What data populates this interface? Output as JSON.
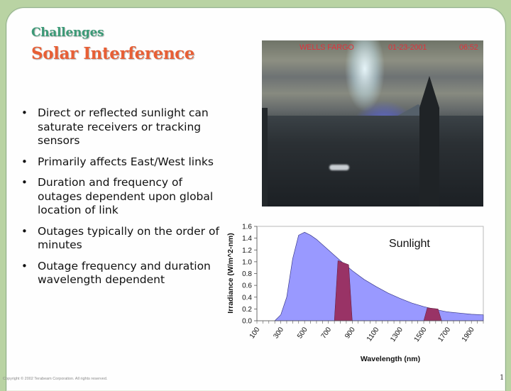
{
  "slide": {
    "title": "Challenges",
    "subtitle": "Solar Interference",
    "colors": {
      "background": "#b9d3a3",
      "title": "#3c9a77",
      "subtitle": "#e85f35",
      "curve_fill": "#9999ff",
      "band_fill": "#993366"
    }
  },
  "bullets": [
    {
      "symbol": "•",
      "text": "Direct or reflected sunlight can saturate receivers or tracking sensors"
    },
    {
      "symbol": "•",
      "text": "Primarily affects East/West links"
    },
    {
      "symbol": "•",
      "text": "Duration and frequency of outages dependent upon global location of link"
    },
    {
      "symbol": "•",
      "text": "Outages typically on the order of minutes"
    },
    {
      "symbol": "•",
      "text": "Outage frequency and duration wavelength dependent"
    }
  ],
  "photo": {
    "overlay_location": "WELLS FARGO",
    "overlay_date": "01-23-2001",
    "overlay_time": "06:52"
  },
  "chart_data": {
    "type": "area",
    "title": "",
    "annotation": "Sunlight",
    "xlabel": "Wavelength (nm)",
    "ylabel": "Irradiance (W/m^2-nm)",
    "x_tick_labels": [
      "100",
      "300",
      "500",
      "700",
      "900",
      "1100",
      "1300",
      "1500",
      "1700",
      "1900"
    ],
    "y_tick_labels": [
      "0.0",
      "0.2",
      "0.4",
      "0.6",
      "0.8",
      "1.0",
      "1.2",
      "1.4",
      "1.6"
    ],
    "xlim": [
      100,
      2000
    ],
    "ylim": [
      0,
      1.6
    ],
    "grid": false,
    "legend": "none",
    "series": [
      {
        "name": "Sunlight",
        "x": [
          250,
          300,
          350,
          400,
          450,
          500,
          550,
          600,
          700,
          800,
          900,
          1000,
          1100,
          1200,
          1300,
          1400,
          1500,
          1600,
          1700,
          1800,
          1900,
          2000
        ],
        "values": [
          0.0,
          0.1,
          0.4,
          1.05,
          1.45,
          1.5,
          1.45,
          1.38,
          1.2,
          1.02,
          0.85,
          0.7,
          0.58,
          0.47,
          0.38,
          0.3,
          0.24,
          0.19,
          0.15,
          0.13,
          0.11,
          0.1
        ]
      }
    ],
    "highlight_bands": [
      {
        "name": "band-850nm",
        "x_start": 750,
        "x_end": 900,
        "top_left": 1.02,
        "top_right": 0.95
      },
      {
        "name": "band-1550nm",
        "x_start": 1500,
        "x_end": 1650,
        "top_left": 0.22,
        "top_right": 0.2
      }
    ]
  },
  "footer": {
    "copyright": "Copyright © 2002 Terabeam Corporation. All rights reserved.",
    "page_number": "1"
  }
}
